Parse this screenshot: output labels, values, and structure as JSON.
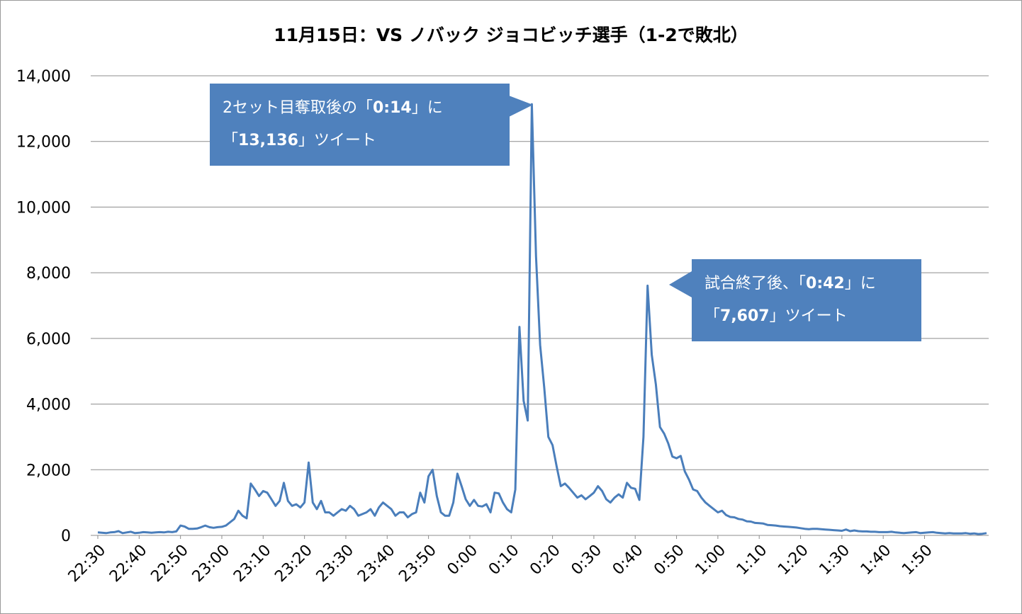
{
  "chart_data": {
    "type": "line",
    "title": "11月15日：VS ノバック ジョコビッチ選手（1-2で敗北）",
    "ylim": [
      0,
      14000
    ],
    "yticks": [
      "0",
      "2,000",
      "4,000",
      "6,000",
      "8,000",
      "10,000",
      "12,000",
      "14,000"
    ],
    "ytick_values": [
      0,
      2000,
      4000,
      6000,
      8000,
      10000,
      12000,
      14000
    ],
    "xtick_labels": [
      "22:30",
      "22:40",
      "22:50",
      "23:00",
      "23:10",
      "23:20",
      "23:30",
      "23:40",
      "23:50",
      "0:00",
      "0:10",
      "0:20",
      "0:30",
      "0:40",
      "0:50",
      "1:00",
      "1:10",
      "1:20",
      "1:30",
      "1:40",
      "1:50"
    ],
    "x_start": "22:30",
    "x_interval_minutes": 1,
    "grid": true,
    "series": [
      {
        "color": "#4a7ebb",
        "values": [
          90,
          80,
          70,
          90,
          100,
          130,
          70,
          90,
          110,
          70,
          80,
          100,
          90,
          80,
          90,
          100,
          90,
          110,
          100,
          120,
          300,
          270,
          200,
          200,
          210,
          250,
          300,
          250,
          230,
          250,
          260,
          300,
          400,
          500,
          750,
          600,
          520,
          1580,
          1400,
          1200,
          1350,
          1300,
          1100,
          900,
          1050,
          1600,
          1050,
          900,
          950,
          850,
          1000,
          2220,
          1000,
          800,
          1050,
          700,
          700,
          600,
          700,
          800,
          750,
          900,
          800,
          600,
          650,
          700,
          800,
          600,
          850,
          1000,
          900,
          800,
          600,
          700,
          700,
          550,
          650,
          700,
          1300,
          1000,
          1800,
          2000,
          1200,
          700,
          600,
          600,
          1000,
          1880,
          1500,
          1100,
          900,
          1080,
          900,
          880,
          950,
          700,
          1300,
          1280,
          1000,
          800,
          700,
          1400,
          6350,
          4100,
          3500,
          13136,
          8500,
          5800,
          4500,
          3000,
          2750,
          2100,
          1500,
          1580,
          1450,
          1300,
          1150,
          1220,
          1100,
          1200,
          1300,
          1500,
          1350,
          1100,
          1000,
          1150,
          1250,
          1150,
          1600,
          1450,
          1420,
          1080,
          3000,
          7607,
          5500,
          4600,
          3300,
          3100,
          2800,
          2400,
          2350,
          2420,
          1950,
          1700,
          1400,
          1350,
          1150,
          1000,
          900,
          800,
          700,
          750,
          620,
          560,
          550,
          500,
          480,
          430,
          420,
          380,
          370,
          360,
          320,
          310,
          300,
          280,
          270,
          260,
          250,
          240,
          220,
          200,
          190,
          200,
          200,
          190,
          180,
          170,
          160,
          150,
          140,
          180,
          130,
          150,
          130,
          120,
          120,
          110,
          110,
          100,
          100,
          100,
          110,
          90,
          80,
          70,
          80,
          90,
          100,
          70,
          80,
          90,
          100,
          80,
          70,
          60,
          70,
          60,
          60,
          60,
          70,
          50,
          60,
          40,
          50,
          70
        ]
      }
    ]
  },
  "annotations": [
    {
      "prefix": "2セット目奪取後の「",
      "time": "0:14",
      "middle": "」に",
      "open": "「",
      "count": "13,136",
      "suffix": "」ツイート"
    },
    {
      "prefix": "試合終了後、「",
      "time": "0:42",
      "middle": "」に",
      "open": "「",
      "count": "7,607",
      "suffix": "」ツイート"
    }
  ]
}
